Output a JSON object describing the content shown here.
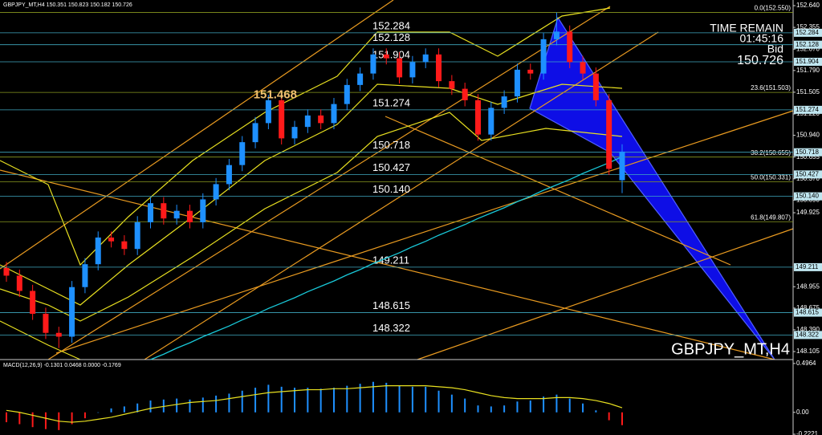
{
  "chart_data": [
    {
      "type": "candlestick",
      "title": "GBPJPY_MT,H4 150.351 150.823 150.182 150.726",
      "watermark": "GBPJPY_MT,H4",
      "time_remain_label": "TIME REMAIN",
      "time_remain": "01:45:16",
      "bid_label": "Bid",
      "bid": 150.726,
      "peak_label": {
        "value": 151.468,
        "label": "151.468"
      },
      "open": [
        149.2,
        149.1,
        148.9,
        148.6,
        148.35,
        148.3,
        148.95,
        149.25,
        149.6,
        149.55,
        149.45,
        149.8,
        150.05,
        149.85,
        149.95,
        149.8,
        150.1,
        150.3,
        150.55,
        150.85,
        151.1,
        151.4,
        150.9,
        151.05,
        151.2,
        151.1,
        151.35,
        151.6,
        151.75,
        152.0,
        151.95,
        151.7,
        151.9,
        152.0,
        151.65,
        151.55,
        151.4,
        150.95,
        151.3,
        151.45,
        151.8,
        151.75,
        152.2,
        152.3,
        151.9,
        151.75,
        151.4,
        150.351
      ],
      "high": [
        149.28,
        149.18,
        148.98,
        148.68,
        148.43,
        149.03,
        149.33,
        149.68,
        149.68,
        149.63,
        149.88,
        150.13,
        150.13,
        150.03,
        150.03,
        150.18,
        150.38,
        150.63,
        150.93,
        151.18,
        151.47,
        151.48,
        151.13,
        151.28,
        151.28,
        151.43,
        151.68,
        151.83,
        152.08,
        152.08,
        152.03,
        151.98,
        152.08,
        152.08,
        151.73,
        151.63,
        151.48,
        151.38,
        151.53,
        151.88,
        151.88,
        152.28,
        152.55,
        152.38,
        151.98,
        151.83,
        151.48,
        150.823
      ],
      "low": [
        149.02,
        148.82,
        148.52,
        148.27,
        148.15,
        148.22,
        148.87,
        149.17,
        149.47,
        149.37,
        149.37,
        149.72,
        149.77,
        149.77,
        149.72,
        149.72,
        150.02,
        150.22,
        150.47,
        150.77,
        151.02,
        150.82,
        150.82,
        150.97,
        151.02,
        151.02,
        151.27,
        151.52,
        151.67,
        151.87,
        151.62,
        151.62,
        151.82,
        151.57,
        151.47,
        151.32,
        150.87,
        150.87,
        151.22,
        151.37,
        151.67,
        151.67,
        152.12,
        151.82,
        151.67,
        151.32,
        150.42,
        150.182
      ],
      "close": [
        149.1,
        148.9,
        148.6,
        148.35,
        148.3,
        148.95,
        149.25,
        149.6,
        149.55,
        149.45,
        149.8,
        150.05,
        149.85,
        149.95,
        149.8,
        150.1,
        150.3,
        150.55,
        150.85,
        151.1,
        151.4,
        150.9,
        151.05,
        151.2,
        151.1,
        151.35,
        151.6,
        151.75,
        152.0,
        151.95,
        151.7,
        151.9,
        152.0,
        151.65,
        151.55,
        151.4,
        150.95,
        151.3,
        151.45,
        151.8,
        151.75,
        152.2,
        152.3,
        151.9,
        151.75,
        151.4,
        150.5,
        150.726
      ],
      "up_color": "#1e90ff",
      "down_color": "#ff1a1a",
      "ma": {
        "color": "#19c8d8",
        "values": [
          null,
          null,
          null,
          null,
          null,
          null,
          null,
          null,
          null,
          null,
          null,
          148.0,
          148.07,
          148.15,
          148.22,
          148.3,
          148.37,
          148.44,
          148.52,
          148.59,
          148.67,
          148.74,
          148.81,
          148.89,
          148.96,
          149.03,
          149.11,
          149.18,
          149.26,
          149.33,
          149.4,
          149.48,
          149.55,
          149.63,
          149.7,
          149.77,
          149.85,
          149.92,
          149.99,
          150.07,
          150.14,
          150.22,
          150.29,
          150.36,
          150.44,
          150.51,
          150.58,
          150.66
        ]
      },
      "levels": [
        {
          "value": 152.284,
          "label": "152.284"
        },
        {
          "value": 152.128,
          "label": "152.128"
        },
        {
          "value": 151.904,
          "label": "151.904"
        },
        {
          "value": 151.274,
          "label": "151.274"
        },
        {
          "value": 150.718,
          "label": "150.718"
        },
        {
          "value": 150.427,
          "label": "150.427"
        },
        {
          "value": 150.14,
          "label": "150.140"
        },
        {
          "value": 149.211,
          "label": "149.211"
        },
        {
          "value": 148.615,
          "label": "148.615"
        },
        {
          "value": 148.322,
          "label": "148.322"
        }
      ],
      "fib_levels": [
        {
          "value": 152.55,
          "label": "0.0(152.550)"
        },
        {
          "value": 151.503,
          "label": "23.6(151.503)"
        },
        {
          "value": 150.655,
          "label": "38.2(150.655)"
        },
        {
          "value": 150.331,
          "label": "50.0(150.331)"
        },
        {
          "value": 149.807,
          "label": "61.8(149.807)"
        }
      ],
      "ylim": [
        148.0,
        152.714
      ],
      "yticks": [
        {
          "value": 152.64,
          "label": "152.640"
        },
        {
          "value": 152.355,
          "label": "152.355"
        },
        {
          "value": 152.07,
          "label": "152.070"
        },
        {
          "value": 151.79,
          "label": "151.790"
        },
        {
          "value": 151.505,
          "label": "151.505"
        },
        {
          "value": 151.22,
          "label": "151.220"
        },
        {
          "value": 150.94,
          "label": "150.940"
        },
        {
          "value": 150.655,
          "label": "150.655"
        },
        {
          "value": 150.37,
          "label": "150.370"
        },
        {
          "value": 150.09,
          "label": "150.090"
        },
        {
          "value": 149.925,
          "label": "149.925"
        },
        {
          "value": 148.955,
          "label": "148.955"
        },
        {
          "value": 148.675,
          "label": "148.675"
        },
        {
          "value": 148.39,
          "label": "148.390"
        },
        {
          "value": 148.105,
          "label": "148.105"
        }
      ]
    },
    {
      "type": "macd",
      "title": "MACD(12,26,9) -0.1301 0.0468 0.0000 -0.1769",
      "histogram": {
        "up_color": "#1e90ff",
        "down_color": "#ff1a1a",
        "values": [
          -0.1,
          -0.12,
          -0.15,
          -0.17,
          -0.18,
          -0.12,
          -0.06,
          0.0,
          0.04,
          0.06,
          0.09,
          0.12,
          0.13,
          0.14,
          0.13,
          0.15,
          0.17,
          0.19,
          0.22,
          0.25,
          0.28,
          0.26,
          0.25,
          0.25,
          0.24,
          0.25,
          0.27,
          0.29,
          0.31,
          0.3,
          0.27,
          0.26,
          0.26,
          0.22,
          0.18,
          0.14,
          0.07,
          0.06,
          0.07,
          0.11,
          0.12,
          0.16,
          0.18,
          0.14,
          0.09,
          0.02,
          -0.08,
          -0.1301
        ]
      },
      "signal": {
        "color": "#e8e020",
        "values": [
          0.02,
          0.0,
          -0.03,
          -0.06,
          -0.09,
          -0.1,
          -0.09,
          -0.07,
          -0.05,
          -0.02,
          0.01,
          0.04,
          0.06,
          0.08,
          0.1,
          0.11,
          0.12,
          0.14,
          0.16,
          0.18,
          0.2,
          0.21,
          0.22,
          0.23,
          0.23,
          0.24,
          0.24,
          0.25,
          0.26,
          0.27,
          0.27,
          0.27,
          0.27,
          0.26,
          0.25,
          0.23,
          0.2,
          0.17,
          0.15,
          0.14,
          0.14,
          0.14,
          0.15,
          0.15,
          0.14,
          0.12,
          0.09,
          0.0468
        ]
      },
      "ylim": [
        -0.23,
        0.536
      ],
      "yticks": [
        0.4964,
        {
          "value": 0,
          "label": "0.00"
        },
        -0.2221
      ]
    }
  ]
}
